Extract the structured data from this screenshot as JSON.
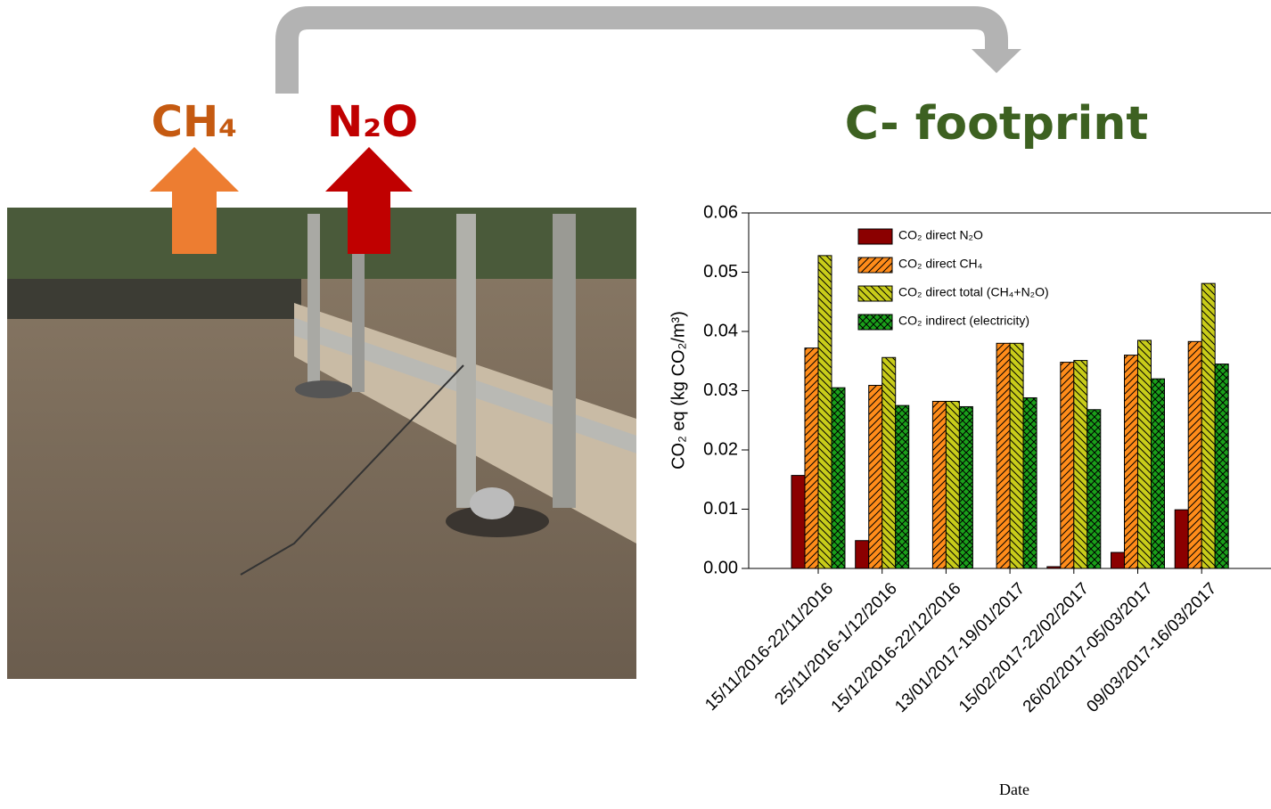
{
  "labels": {
    "gas_1": "CH₄",
    "gas_2": "N₂O",
    "result": "C- footprint"
  },
  "chart_data": {
    "type": "bar",
    "ylabel": "CO₂ eq (kg CO₂/m³)",
    "xlabel": "Date",
    "categories": [
      "15/11/2016-22/11/2016",
      "25/11/2016-1/12/2016",
      "15/12/2016-22/12/2016",
      "13/01/2017-19/01/2017",
      "15/02/2017-22/02/2017",
      "26/02/2017-05/03/2017",
      "09/03/2017-16/03/2017"
    ],
    "series": [
      {
        "name": "CO₂ direct N₂O",
        "color": "#8b0000",
        "values": [
          0.0157,
          0.0047,
          0,
          0,
          0.0003,
          0.0027,
          0.0099
        ]
      },
      {
        "name": "CO₂ direct CH₄",
        "color": "#ff8c1a",
        "values": [
          0.0372,
          0.0309,
          0.0282,
          0.038,
          0.0348,
          0.036,
          0.0383
        ]
      },
      {
        "name": "CO₂ direct total (CH₄+N₂O)",
        "color": "#c8cc1a",
        "values": [
          0.0528,
          0.0356,
          0.0282,
          0.038,
          0.0351,
          0.0385,
          0.0481
        ]
      },
      {
        "name": "CO₂ indirect (electricity)",
        "color": "#1aa01a",
        "values": [
          0.0305,
          0.0275,
          0.0273,
          0.0288,
          0.0268,
          0.032,
          0.0345
        ]
      }
    ],
    "ylim": [
      0,
      0.06
    ],
    "yticks": [
      {
        "value": 0,
        "label": "0.00"
      },
      0.01,
      0.02,
      0.03,
      0.04,
      0.05,
      0.06
    ]
  }
}
